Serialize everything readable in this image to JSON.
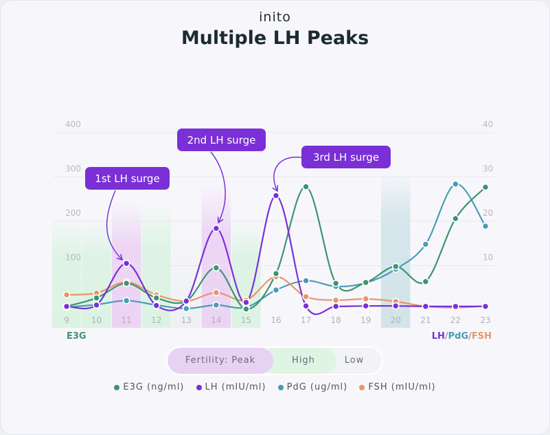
{
  "logo": "inito",
  "title": "Multiple LH Peaks",
  "colors": {
    "E3G": "#3c9471",
    "LH": "#7b2fd6",
    "PdG": "#4a9bb5",
    "FSH": "#e8956a",
    "peak_band": "#ecd3f4",
    "high_band": "#dcf3e3",
    "blue_band": "#d2e4ea"
  },
  "chart_data": {
    "type": "line",
    "x": [
      9,
      10,
      11,
      12,
      13,
      14,
      15,
      16,
      17,
      18,
      19,
      20,
      21,
      22,
      23
    ],
    "left_axis": {
      "label": "E3G",
      "ticks": [
        100,
        200,
        300,
        400
      ],
      "range": [
        0,
        400
      ]
    },
    "right_axis": {
      "label_parts": [
        "LH",
        "/",
        "PdG",
        "/",
        "FSH"
      ],
      "ticks": [
        10,
        20,
        30,
        40
      ],
      "range": [
        0,
        40
      ]
    },
    "grid": true,
    "series": [
      {
        "name": "E3G (ng/ml)",
        "axis": "left",
        "color": "#3c9471",
        "values": [
          8,
          27,
          60,
          27,
          20,
          95,
          2,
          82,
          278,
          60,
          62,
          98,
          64,
          206,
          277
        ]
      },
      {
        "name": "LH (mIU/ml)",
        "axis": "right",
        "color": "#7b2fd6",
        "values": [
          0.8,
          1.1,
          10.5,
          1.0,
          2.0,
          18.4,
          1.7,
          25.8,
          0.9,
          0.8,
          0.9,
          0.9,
          0.8,
          0.8,
          0.8
        ]
      },
      {
        "name": "PdG (ug/ml)",
        "axis": "right",
        "color": "#4a9bb5",
        "values": [
          0.6,
          1.2,
          2.1,
          1.1,
          0.3,
          1.1,
          0.6,
          4.5,
          6.6,
          5.3,
          6.1,
          9.2,
          14.8,
          28.4,
          18.9
        ]
      },
      {
        "name": "FSH (mIU/ml)",
        "axis": "right",
        "color": "#e8956a",
        "values": [
          3.4,
          3.8,
          6.3,
          3.4,
          2.0,
          3.9,
          2.2,
          7.5,
          3.0,
          2.2,
          2.5,
          1.9,
          0.8,
          0.5,
          0.9
        ]
      }
    ],
    "fertility_bands": [
      {
        "day": 9,
        "level": "High"
      },
      {
        "day": 10,
        "level": "High"
      },
      {
        "day": 11,
        "level": "Peak"
      },
      {
        "day": 12,
        "level": "High"
      },
      {
        "day": 13,
        "level": "Low"
      },
      {
        "day": 14,
        "level": "Peak"
      },
      {
        "day": 15,
        "level": "High"
      },
      {
        "day": 20,
        "level": "Other"
      }
    ],
    "annotations": [
      {
        "text": "1st LH surge",
        "day": 11
      },
      {
        "text": "2nd LH surge",
        "day": 14
      },
      {
        "text": "3rd LH surge",
        "day": 16
      }
    ],
    "legend_placement": "bottom"
  },
  "fertility_legend": {
    "peak": "Fertility: Peak",
    "high": "High",
    "low": "Low"
  }
}
